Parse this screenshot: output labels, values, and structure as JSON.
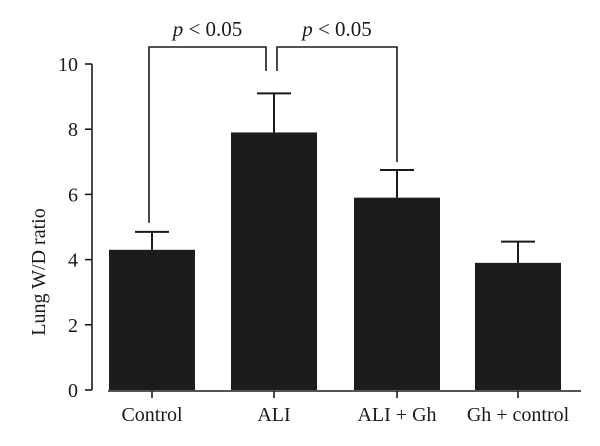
{
  "chart_data": {
    "type": "bar",
    "categories": [
      "Control",
      "ALI",
      "ALI + Gh",
      "Gh + control"
    ],
    "values": [
      4.3,
      7.9,
      5.9,
      3.9
    ],
    "errors": [
      0.55,
      1.2,
      0.85,
      0.65
    ],
    "title": "",
    "xlabel": "",
    "ylabel": "Lung W/D ratio",
    "ylim": [
      0,
      10
    ],
    "yticks": [
      0,
      2,
      4,
      6,
      8,
      10
    ],
    "grid": false,
    "bar_color": "#1c1c1c",
    "annotations": [
      {
        "text": "p < 0.05",
        "from": "Control",
        "to": "ALI"
      },
      {
        "text": "p < 0.05",
        "from": "ALI",
        "to": "ALI + Gh"
      }
    ]
  }
}
